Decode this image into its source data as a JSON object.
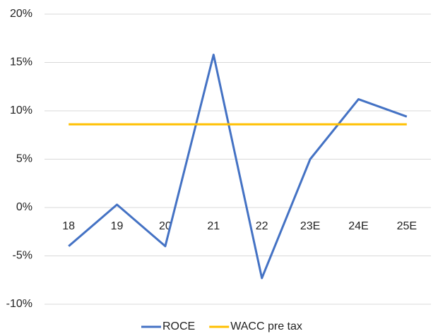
{
  "chart_data": {
    "type": "line",
    "categories": [
      "18",
      "19",
      "20",
      "21",
      "22",
      "23E",
      "24E",
      "25E"
    ],
    "series": [
      {
        "name": "ROCE",
        "color": "#4472c4",
        "values": [
          -4.0,
          0.3,
          -4.0,
          15.8,
          -7.3,
          5.0,
          11.2,
          9.4
        ]
      },
      {
        "name": "WACC pre tax",
        "color": "#ffc000",
        "values": [
          8.6,
          8.6,
          8.6,
          8.6,
          8.6,
          8.6,
          8.6,
          8.6
        ]
      }
    ],
    "ylim": [
      -10,
      20
    ],
    "yticks": [
      {
        "value": -10,
        "label": "-10%"
      },
      {
        "value": -5,
        "label": "-5%"
      },
      {
        "value": 0,
        "label": "0%"
      },
      {
        "value": 5,
        "label": "5%"
      },
      {
        "value": 10,
        "label": "10%"
      },
      {
        "value": 15,
        "label": "15%"
      },
      {
        "value": 20,
        "label": "20%"
      }
    ],
    "grid": true,
    "legend": "bottom"
  }
}
